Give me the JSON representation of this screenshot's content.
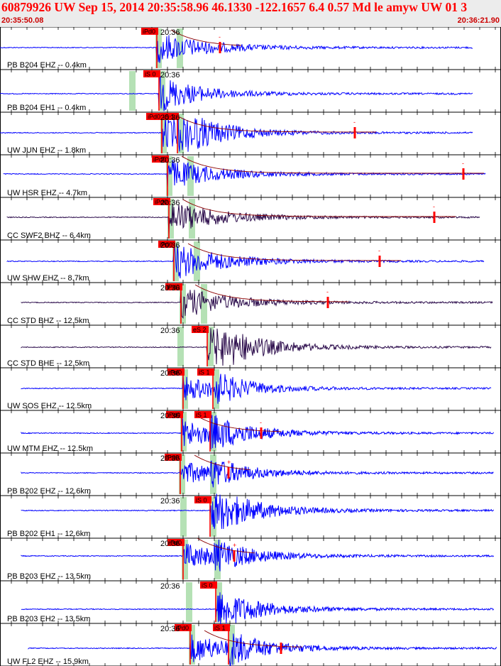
{
  "header": {
    "title": "60879926 UW Sep 15, 2014 20:35:58.96   46.1330 -122.1657  6.4 0.57 Md le amyw UW 01   3",
    "start_time": "20:35:50.08",
    "end_time": "20:36:21.90"
  },
  "colors": {
    "trace_blue": "#0000ff",
    "trace_dark": "#2a0a4a",
    "pick_red": "#ff0000",
    "coda_dark_red": "#8b0000",
    "phase_band_green": "#a8dca8",
    "header_bg": "#ececec"
  },
  "tick_label": "20:36",
  "traces": [
    {
      "label": "PB B204 EHZ -- 0.4km",
      "color": "blue",
      "picks": [
        "iPd0"
      ],
      "end_mark": "-"
    },
    {
      "label": "PB B204 EH1 -- 0.4km",
      "color": "blue",
      "picks": [
        "iS 0"
      ],
      "end_mark": ""
    },
    {
      "label": "UW JUN EHZ -- 1.8km",
      "color": "blue",
      "picks": [
        "iPd0",
        "iS 1"
      ],
      "end_mark": "-"
    },
    {
      "label": "UW HSR EHZ -- 4.7km",
      "color": "blue",
      "picks": [
        "iPd0"
      ],
      "end_mark": "-"
    },
    {
      "label": "CC SWF2 BHZ -- 6.4km",
      "color": "dark",
      "picks": [
        "iPd0"
      ],
      "end_mark": "-"
    },
    {
      "label": "UW SHW EHZ -- 8.7km",
      "color": "blue",
      "picks": [
        "iPd0"
      ],
      "end_mark": "-"
    },
    {
      "label": "CC STD BHZ -- 12.5km",
      "color": "dark",
      "picks": [
        "iPd0"
      ],
      "end_mark": "-"
    },
    {
      "label": "CC STD BHE -- 12.5km",
      "color": "dark",
      "picks": [
        "eS 2"
      ],
      "end_mark": ""
    },
    {
      "label": "UW SOS EHZ -- 12.5km",
      "color": "blue",
      "picks": [
        "iPd0",
        "iS 1"
      ],
      "end_mark": ""
    },
    {
      "label": "UW MTM EHZ -- 12.5km",
      "color": "blue",
      "picks": [
        "iPd0",
        "iS 1"
      ],
      "end_mark": "-"
    },
    {
      "label": "PB B202 EHZ -- 12.6km",
      "color": "blue",
      "picks": [
        "iPd0"
      ],
      "end_mark": "+"
    },
    {
      "label": "PB B202 EH1 -- 12.6km",
      "color": "blue",
      "picks": [
        "iS 0"
      ],
      "end_mark": ""
    },
    {
      "label": "PB B203 EHZ -- 13.5km",
      "color": "blue",
      "picks": [
        "iPd0"
      ],
      "end_mark": "+"
    },
    {
      "label": "PB B203 EH2 -- 13.5km",
      "color": "blue",
      "picks": [
        "iS 0"
      ],
      "end_mark": ""
    },
    {
      "label": "UW FL2 EHZ -- 15.9km",
      "color": "blue",
      "picks": [
        "iPd0",
        "iS 1"
      ],
      "end_mark": ""
    }
  ]
}
